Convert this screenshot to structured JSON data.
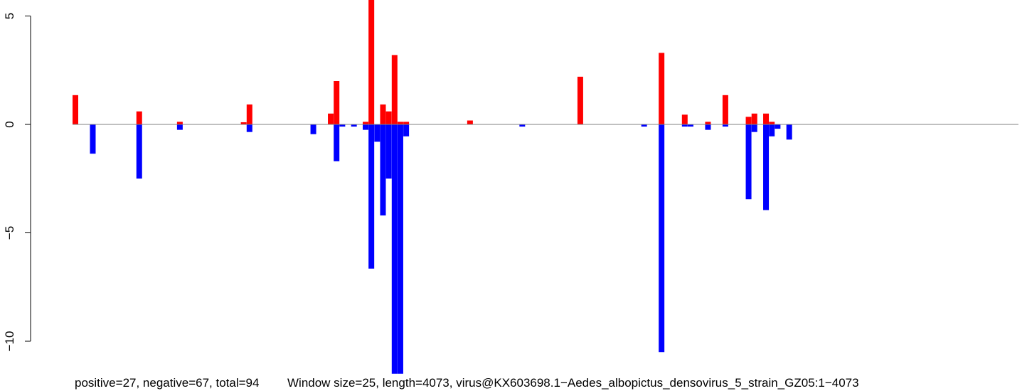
{
  "chart_data": {
    "type": "bar",
    "title": "",
    "xlabel": "",
    "ylabel": "",
    "ylim": [
      -11.5,
      5.7
    ],
    "xlim": [
      -300,
      4073
    ],
    "y_ticks": [
      {
        "value": 5,
        "label": "5"
      },
      {
        "value": 0,
        "label": "0"
      },
      {
        "value": -5,
        "label": "−5"
      },
      {
        "value": -10,
        "label": "−10"
      }
    ],
    "grid": false,
    "baseline": 0,
    "window_size": 25,
    "colors": {
      "positive": "#ff0000",
      "negative": "#0000ff",
      "baseline": "#808080"
    },
    "series": [
      {
        "name": "positive",
        "color": "#ff0000",
        "points": [
          {
            "x": 0,
            "y": 1.35
          },
          {
            "x": 275,
            "y": 0.6
          },
          {
            "x": 450,
            "y": 0.12
          },
          {
            "x": 725,
            "y": 0.1
          },
          {
            "x": 750,
            "y": 0.92
          },
          {
            "x": 1100,
            "y": 0.5
          },
          {
            "x": 1125,
            "y": 2.0
          },
          {
            "x": 1250,
            "y": 0.12
          },
          {
            "x": 1275,
            "y": 6.0
          },
          {
            "x": 1325,
            "y": 0.92
          },
          {
            "x": 1350,
            "y": 0.6
          },
          {
            "x": 1375,
            "y": 3.2
          },
          {
            "x": 1400,
            "y": 0.12
          },
          {
            "x": 1425,
            "y": 0.12
          },
          {
            "x": 1700,
            "y": 0.18
          },
          {
            "x": 2175,
            "y": 2.2
          },
          {
            "x": 2525,
            "y": 3.3
          },
          {
            "x": 2625,
            "y": 0.45
          },
          {
            "x": 2725,
            "y": 0.12
          },
          {
            "x": 2800,
            "y": 1.35
          },
          {
            "x": 2900,
            "y": 0.35
          },
          {
            "x": 2925,
            "y": 0.5
          },
          {
            "x": 2975,
            "y": 0.5
          },
          {
            "x": 3000,
            "y": 0.12
          }
        ]
      },
      {
        "name": "negative",
        "color": "#0000ff",
        "points": [
          {
            "x": 75,
            "y": -1.35
          },
          {
            "x": 275,
            "y": -2.5
          },
          {
            "x": 450,
            "y": -0.25
          },
          {
            "x": 750,
            "y": -0.35
          },
          {
            "x": 1025,
            "y": -0.45
          },
          {
            "x": 1125,
            "y": -1.7
          },
          {
            "x": 1150,
            "y": -0.1
          },
          {
            "x": 1200,
            "y": -0.1
          },
          {
            "x": 1250,
            "y": -0.25
          },
          {
            "x": 1275,
            "y": -6.65
          },
          {
            "x": 1300,
            "y": -0.8
          },
          {
            "x": 1325,
            "y": -4.2
          },
          {
            "x": 1350,
            "y": -2.5
          },
          {
            "x": 1375,
            "y": -11.5
          },
          {
            "x": 1400,
            "y": -11.5
          },
          {
            "x": 1425,
            "y": -0.55
          },
          {
            "x": 1925,
            "y": -0.1
          },
          {
            "x": 2450,
            "y": -0.1
          },
          {
            "x": 2525,
            "y": -10.5
          },
          {
            "x": 2625,
            "y": -0.1
          },
          {
            "x": 2650,
            "y": -0.1
          },
          {
            "x": 2725,
            "y": -0.25
          },
          {
            "x": 2800,
            "y": -0.1
          },
          {
            "x": 2900,
            "y": -3.45
          },
          {
            "x": 2925,
            "y": -0.35
          },
          {
            "x": 2975,
            "y": -3.95
          },
          {
            "x": 3000,
            "y": -0.55
          },
          {
            "x": 3025,
            "y": -0.2
          },
          {
            "x": 3075,
            "y": -0.7
          }
        ]
      }
    ]
  },
  "captions": {
    "stats": "positive=27, negative=67, total=94",
    "info": "Window size=25, length=4073, virus@KX603698.1−Aedes_albopictus_densovirus_5_strain_GZ05:1−4073"
  }
}
